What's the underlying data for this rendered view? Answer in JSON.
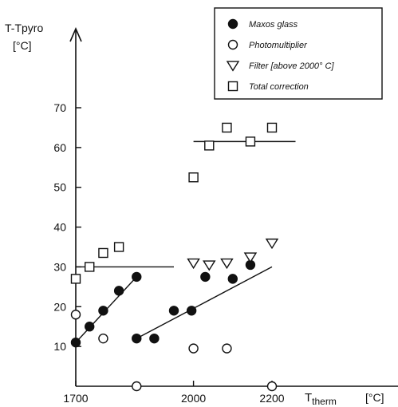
{
  "chart_data": {
    "type": "scatter",
    "title": "",
    "ylabel": [
      "T-Tpyro",
      "[°C]"
    ],
    "xlabel": "Ttherm",
    "xlabel_main": "T",
    "xlabel_sub": "therm",
    "xunit": "[°C]",
    "xlim": [
      1700,
      2200
    ],
    "ylim": [
      0,
      70
    ],
    "xticks": [
      1700,
      2000,
      2200
    ],
    "yticks": [
      10,
      20,
      30,
      40,
      50,
      60,
      70
    ],
    "grid": false,
    "legend_position": "top-right",
    "series": [
      {
        "name": "Maxos glass",
        "marker": "filled-circle",
        "points": [
          [
            1700,
            11
          ],
          [
            1735,
            15
          ],
          [
            1770,
            19
          ],
          [
            1810,
            24
          ],
          [
            1855,
            27.5
          ],
          [
            1855,
            12
          ],
          [
            1900,
            12
          ],
          [
            1950,
            19
          ],
          [
            1995,
            19
          ],
          [
            2030,
            27.5
          ],
          [
            2100,
            27
          ],
          [
            2145,
            30.5
          ]
        ]
      },
      {
        "name": "Photomultiplier",
        "marker": "open-circle",
        "points": [
          [
            1700,
            18
          ],
          [
            1770,
            12
          ],
          [
            1855,
            0
          ],
          [
            2000,
            9.5
          ],
          [
            2085,
            9.5
          ],
          [
            2200,
            0
          ]
        ]
      },
      {
        "name": "Filter  [above 2000° C]",
        "marker": "open-triangle-down",
        "points": [
          [
            2000,
            31
          ],
          [
            2040,
            30.5
          ],
          [
            2085,
            31
          ],
          [
            2145,
            32.5
          ],
          [
            2200,
            36
          ]
        ]
      },
      {
        "name": "Total correction",
        "marker": "open-square",
        "points": [
          [
            1700,
            27
          ],
          [
            1735,
            30
          ],
          [
            1770,
            33.5
          ],
          [
            1810,
            35
          ],
          [
            2000,
            52.5
          ],
          [
            2040,
            60.5
          ],
          [
            2085,
            65
          ],
          [
            2145,
            61.5
          ],
          [
            2200,
            65
          ]
        ]
      }
    ],
    "fit_lines": [
      {
        "from": [
          1700,
          11
        ],
        "to": [
          1855,
          27.5
        ]
      },
      {
        "from": [
          1855,
          12
        ],
        "to": [
          2200,
          30
        ]
      },
      {
        "from": [
          1700,
          30
        ],
        "to": [
          1950,
          30
        ]
      },
      {
        "from": [
          2000,
          61.5
        ],
        "to": [
          2260,
          61.5
        ]
      }
    ]
  }
}
